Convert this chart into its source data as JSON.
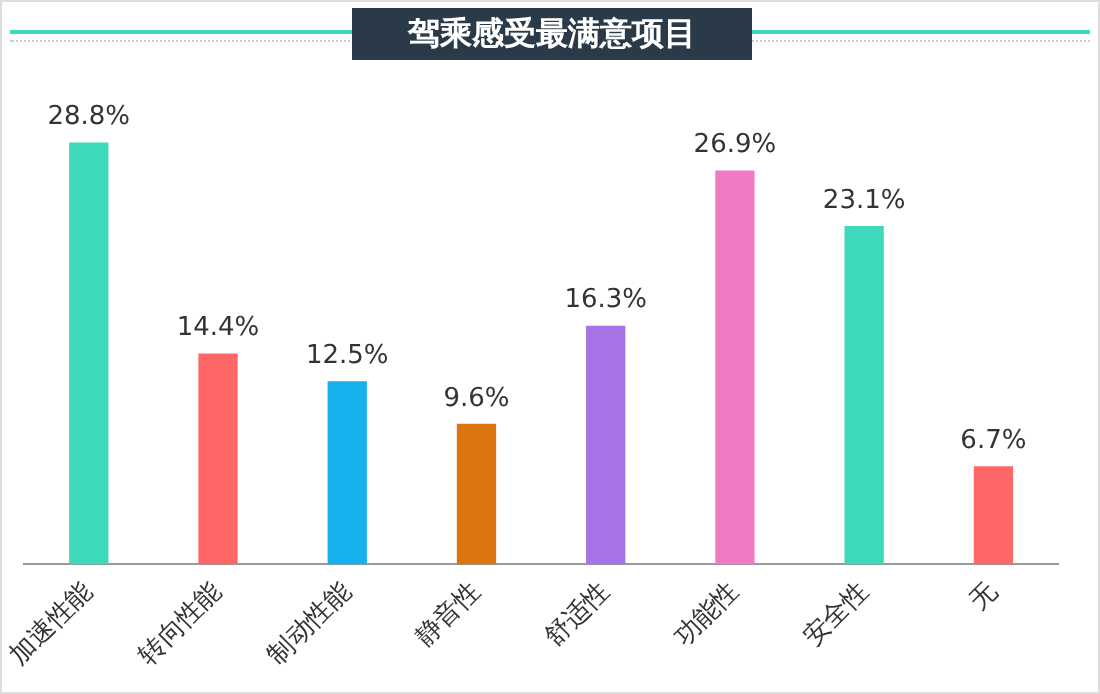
{
  "chart_data": {
    "type": "bar",
    "title": "驾乘感受最满意项目",
    "categories": [
      "加速性能",
      "转向性能",
      "制动性能",
      "静音性",
      "舒适性",
      "功能性",
      "安全性",
      "无"
    ],
    "values": [
      28.8,
      14.4,
      12.5,
      9.6,
      16.3,
      26.9,
      23.1,
      6.7
    ],
    "colors": [
      "#3dd9bb",
      "#ff6666",
      "#16b0ee",
      "#dc7410",
      "#a573e6",
      "#f07ac4",
      "#3dd9bb",
      "#ff6666"
    ],
    "value_labels": [
      "28.8%",
      "14.4%",
      "12.5%",
      "9.6%",
      "16.3%",
      "26.9%",
      "23.1%",
      "6.7%"
    ],
    "grid": false,
    "legend": false
  }
}
